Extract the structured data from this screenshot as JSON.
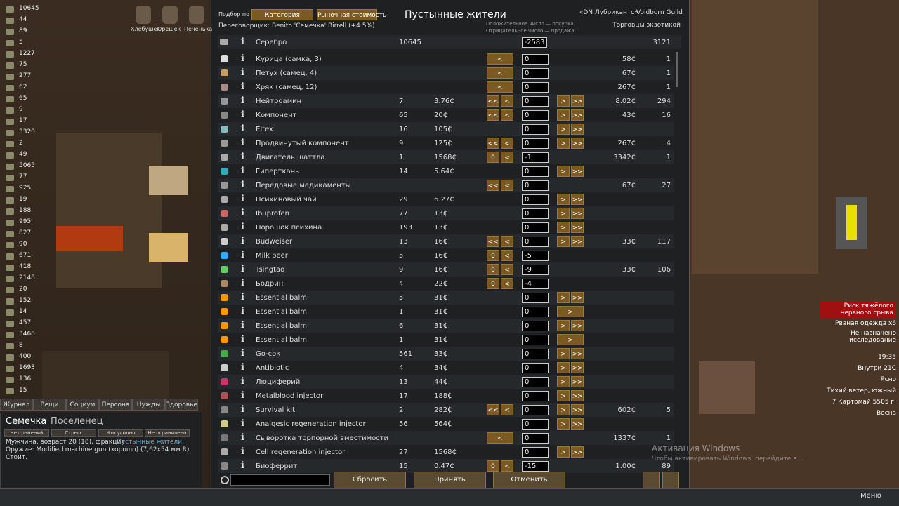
{
  "header": {
    "filter_label": "Подбор по",
    "btn_category": "Категория",
    "btn_market": "Рыночная стоимость",
    "title": "Пустынные жители",
    "negotiator": "Переговорщик: Benito 'Семечка' Birrell (+4.5%)",
    "hint_buy": "Положительное число — покупка.",
    "hint_sell": "Отрицательное число — продажа.",
    "colony": "«DN Лубрикантс»",
    "faction": "Voidborn Guild",
    "trader_kind": "Торговцы экзотикой"
  },
  "silver": {
    "name": "Серебро",
    "colony_qty": 10645,
    "amount": -2583,
    "trader_qty": 3121
  },
  "rows": [
    {
      "name": "Курица (самка, 3)",
      "left": [
        "<"
      ],
      "amount": 0,
      "trader_price": "58₵",
      "trader_qty": 1
    },
    {
      "name": "Петух (самец, 4)",
      "left": [
        "<"
      ],
      "amount": 0,
      "trader_price": "67₵",
      "trader_qty": 1
    },
    {
      "name": "Хряк (самец, 12)",
      "left": [
        "<"
      ],
      "amount": 0,
      "trader_price": "267₵",
      "trader_qty": 1
    },
    {
      "name": "Нейтроамин",
      "colony_qty": 7,
      "colony_price": "3.76₵",
      "left": [
        "<<",
        "<"
      ],
      "amount": 0,
      "right": [
        ">",
        ">>"
      ],
      "trader_price": "8.02₵",
      "trader_qty": 294
    },
    {
      "name": "Компонент",
      "colony_qty": 65,
      "colony_price": "20₵",
      "left": [
        "<<",
        "<"
      ],
      "amount": 0,
      "right": [
        ">",
        ">>"
      ],
      "trader_price": "43₵",
      "trader_qty": 16
    },
    {
      "name": "Eltex",
      "colony_qty": 16,
      "colony_price": "105₵",
      "amount": 0,
      "right": [
        ">",
        ">>"
      ]
    },
    {
      "name": "Продвинутый компонент",
      "colony_qty": 9,
      "colony_price": "125₵",
      "left": [
        "<<",
        "<"
      ],
      "amount": 0,
      "right": [
        ">",
        ">>"
      ],
      "trader_price": "267₵",
      "trader_qty": 4
    },
    {
      "name": "Двигатель шаттла",
      "colony_qty": 1,
      "colony_price": "1568₵",
      "left": [
        "0",
        "<"
      ],
      "amount": -1,
      "trader_price": "3342₵",
      "trader_qty": 1
    },
    {
      "name": "Гиперткань",
      "colony_qty": 14,
      "colony_price": "5.64₵",
      "amount": 0,
      "right": [
        ">",
        ">>"
      ]
    },
    {
      "name": "Передовые медикаменты",
      "left": [
        "<<",
        "<"
      ],
      "amount": 0,
      "trader_price": "67₵",
      "trader_qty": 27
    },
    {
      "name": "Психиновый чай",
      "colony_qty": 29,
      "colony_price": "6.27₵",
      "amount": 0,
      "right": [
        ">",
        ">>"
      ]
    },
    {
      "name": "Ibuprofen",
      "colony_qty": 77,
      "colony_price": "13₵",
      "amount": 0,
      "right": [
        ">",
        ">>"
      ]
    },
    {
      "name": "Порошок психина",
      "colony_qty": 193,
      "colony_price": "13₵",
      "amount": 0,
      "right": [
        ">",
        ">>"
      ]
    },
    {
      "name": "Budweiser",
      "colony_qty": 13,
      "colony_price": "16₵",
      "left": [
        "<<",
        "<"
      ],
      "amount": 0,
      "right": [
        ">",
        ">>"
      ],
      "trader_price": "33₵",
      "trader_qty": 117
    },
    {
      "name": "Milk beer",
      "colony_qty": 5,
      "colony_price": "16₵",
      "left": [
        "0",
        "<"
      ],
      "amount": -5
    },
    {
      "name": "Tsingtao",
      "colony_qty": 9,
      "colony_price": "16₵",
      "left": [
        "0",
        "<"
      ],
      "amount": -9,
      "trader_price": "33₵",
      "trader_qty": 106
    },
    {
      "name": "Бодрин",
      "colony_qty": 4,
      "colony_price": "22₵",
      "left": [
        "0",
        "<"
      ],
      "amount": -4
    },
    {
      "name": "Essential balm",
      "colony_qty": 5,
      "colony_price": "31₵",
      "amount": 0,
      "right": [
        ">",
        ">>"
      ]
    },
    {
      "name": "Essential balm",
      "colony_qty": 1,
      "colony_price": "31₵",
      "amount": 0,
      "right": [
        ">"
      ]
    },
    {
      "name": "Essential balm",
      "colony_qty": 6,
      "colony_price": "31₵",
      "amount": 0,
      "right": [
        ">",
        ">>"
      ]
    },
    {
      "name": "Essential balm",
      "colony_qty": 1,
      "colony_price": "31₵",
      "amount": 0,
      "right": [
        ">"
      ]
    },
    {
      "name": "Go-сок",
      "colony_qty": 561,
      "colony_price": "33₵",
      "amount": 0,
      "right": [
        ">",
        ">>"
      ]
    },
    {
      "name": "Antibiotic",
      "colony_qty": 4,
      "colony_price": "34₵",
      "amount": 0,
      "right": [
        ">",
        ">>"
      ]
    },
    {
      "name": "Люциферий",
      "colony_qty": 13,
      "colony_price": "44₵",
      "amount": 0,
      "right": [
        ">",
        ">>"
      ]
    },
    {
      "name": "Metalblood injector",
      "colony_qty": 17,
      "colony_price": "188₵",
      "amount": 0,
      "right": [
        ">",
        ">>"
      ]
    },
    {
      "name": "Survival kit",
      "colony_qty": 2,
      "colony_price": "282₵",
      "left": [
        "<<",
        "<"
      ],
      "amount": 0,
      "right": [
        ">",
        ">>"
      ],
      "trader_price": "602₵",
      "trader_qty": 5
    },
    {
      "name": "Analgesic regeneration injector",
      "colony_qty": 56,
      "colony_price": "564₵",
      "amount": 0,
      "right": [
        ">",
        ">>"
      ]
    },
    {
      "name": "Сыворотка торпорной вместимости",
      "left": [
        "<"
      ],
      "amount": 0,
      "trader_price": "1337₵",
      "trader_qty": 1
    },
    {
      "name": "Cell regeneration injector",
      "colony_qty": 27,
      "colony_price": "1568₵",
      "amount": 0,
      "right": [
        ">",
        ">>"
      ]
    },
    {
      "name": "Биоферрит",
      "colony_qty": 15,
      "colony_price": "0.47₵",
      "left": [
        "0",
        "<"
      ],
      "amount": -15,
      "trader_price": "1.00₵",
      "trader_qty": 89
    }
  ],
  "footer": {
    "reset": "Сбросить",
    "accept": "Принять",
    "cancel": "Отменить"
  },
  "resources": [
    10645,
    44,
    89,
    5,
    1227,
    75,
    277,
    62,
    65,
    9,
    17,
    3320,
    2,
    49,
    5065,
    77,
    925,
    19,
    188,
    995,
    827,
    90,
    671,
    418,
    2148,
    20,
    152,
    14,
    457,
    3468,
    8,
    400,
    1693,
    136,
    15
  ],
  "colonists_top": [
    "Хлебушек",
    "Орешек",
    "Печенька"
  ],
  "tabs": [
    "Журнал",
    "Вещи",
    "Социум",
    "Персона",
    "Нужды",
    "Здоровье"
  ],
  "pawn": {
    "name": "Семечка",
    "role": "Поселенец",
    "health": "Нет ранений",
    "stress": "Стресс",
    "food": "Что угодно",
    "area": "Не ограничено",
    "line1": "Мужчина, возраст 20 (18), фракция",
    "faction": "Пустынные жители",
    "line2": "Оружие: Modified machine gun (хорошо) (7,62x54 мм R)",
    "line3": "Стоит."
  },
  "alerts": [
    "Риск тяжёлого нервного срыва",
    "Рваная одежда x6",
    "Не назначено исследование"
  ],
  "status": [
    "19:35",
    "Внутри 21C",
    "Ясно",
    "Тихий ветер, южный",
    "7 Картомай 5505 г.",
    "Весна"
  ],
  "watermark": {
    "title": "Активация Windows",
    "text": "Чтобы активировать Windows, перейдите в ..."
  },
  "menu": "Меню"
}
